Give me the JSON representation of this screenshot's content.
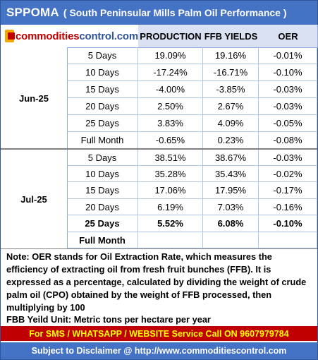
{
  "title": {
    "main": "SPPOMA",
    "sub": "( South Peninsular Mills Palm Oil Performance )"
  },
  "logo": {
    "text_main": "commodities",
    "text_end": "control.com",
    "icon": "commoditiescontrol-logo-icon"
  },
  "headers": {
    "production": "PRODUCTION",
    "ffb_yields": "FFB YIELDS",
    "oer": "OER"
  },
  "table": {
    "months": [
      {
        "label": "Jun-25",
        "rows": [
          {
            "period": "5 Days",
            "production": "19.09%",
            "ffb": "19.16%",
            "oer": "-0.01%"
          },
          {
            "period": "10 Days",
            "production": "-17.24%",
            "ffb": "-16.71%",
            "oer": "-0.10%"
          },
          {
            "period": "15 Days",
            "production": "-4.00%",
            "ffb": "-3.85%",
            "oer": "-0.03%"
          },
          {
            "period": "20 Days",
            "production": "2.50%",
            "ffb": "2.67%",
            "oer": "-0.03%"
          },
          {
            "period": "25 Days",
            "production": "3.83%",
            "ffb": "4.09%",
            "oer": "-0.05%"
          },
          {
            "period": "Full Month",
            "production": "-0.65%",
            "ffb": "0.23%",
            "oer": "-0.08%"
          }
        ]
      },
      {
        "label": "Jul-25",
        "rows": [
          {
            "period": "5 Days",
            "production": "38.51%",
            "ffb": "38.67%",
            "oer": "-0.03%"
          },
          {
            "period": "10 Days",
            "production": "35.28%",
            "ffb": "35.43%",
            "oer": "-0.02%"
          },
          {
            "period": "15 Days",
            "production": "17.06%",
            "ffb": "17.95%",
            "oer": "-0.17%"
          },
          {
            "period": "20 Days",
            "production": "6.19%",
            "ffb": "7.03%",
            "oer": "-0.16%"
          },
          {
            "period": "25 Days",
            "production": "5.52%",
            "ffb": "6.08%",
            "oer": "-0.10%"
          },
          {
            "period": "Full Month",
            "production": "",
            "ffb": "",
            "oer": ""
          }
        ]
      }
    ]
  },
  "note": "Note: OER stands for Oil Extraction Rate, which measures the efficiency of extracting oil from fresh fruit bunches (FFB). It is expressed as a percentage, calculated by dividing the weight of crude palm oil (CPO) obtained by the weight of FFB processed, then multiplying by 100",
  "unit_note": "FBB Yeild Unit: Metric tons per hectare per year",
  "sms_banner": "For SMS / WHATSAPP / WEBSITE Service Call  ON  9607979784",
  "disclaimer": "Subject to Disclaimer @  http://www.commoditiescontrol.com",
  "colors": {
    "title_bg": "#4472c4",
    "header_bg": "#d9e1f2",
    "sms_bg": "#c00000",
    "sms_text": "#ffff00",
    "logo_red": "#c00000"
  }
}
